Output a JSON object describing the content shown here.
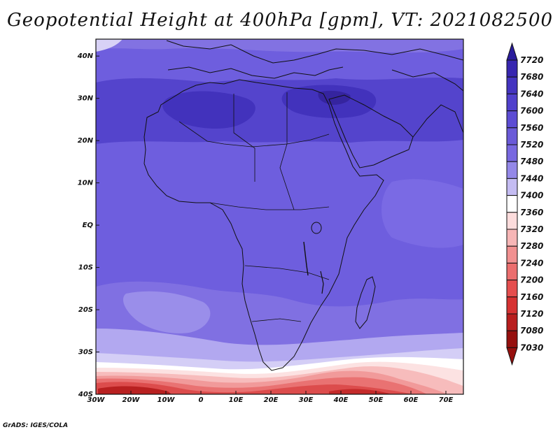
{
  "title": "Geopotential Height at 400hPa [gpm], VT: 2021082500",
  "credit": "GrADS: IGES/COLA",
  "map": {
    "lon_ticks": [
      "30W",
      "20W",
      "10W",
      "0",
      "10E",
      "20E",
      "30E",
      "40E",
      "50E",
      "60E",
      "70E"
    ],
    "lat_ticks": [
      "40N",
      "30N",
      "20N",
      "10N",
      "EQ",
      "10S",
      "20S",
      "30S",
      "40S"
    ],
    "lon_range": [
      -30,
      75
    ],
    "lat_range": [
      -40,
      44
    ],
    "variable": "geopotential height",
    "level": "400hPa",
    "units": "gpm",
    "valid_time": "2021082500"
  },
  "colorbar": {
    "labels": [
      "7720",
      "7680",
      "7640",
      "7600",
      "7560",
      "7520",
      "7480",
      "7440",
      "7400",
      "7360",
      "7320",
      "7280",
      "7240",
      "7200",
      "7160",
      "7120",
      "7080",
      "7030"
    ],
    "colors": [
      "#2a1c9c",
      "#3726b0",
      "#4434c0",
      "#5040cc",
      "#5c4cd4",
      "#6a5ad8",
      "#7868e0",
      "#9488e8",
      "#c4bcf2",
      "#ffffff",
      "#fcdcdc",
      "#f7b6b6",
      "#f19090",
      "#eb6e6e",
      "#e54e4e",
      "#d63232",
      "#b81e1e",
      "#96100e"
    ],
    "orientation": "vertical",
    "position": "right"
  }
}
